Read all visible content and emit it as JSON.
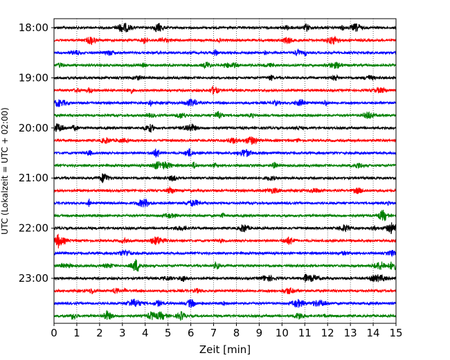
{
  "chart_data": {
    "type": "line",
    "title": "",
    "xlabel": "Zeit  [min]",
    "ylabel": "UTC (Lokalzeit = UTC + 02:00)",
    "xlim": [
      0,
      15
    ],
    "x_ticks": [
      0,
      1,
      2,
      3,
      4,
      5,
      6,
      7,
      8,
      9,
      10,
      11,
      12,
      13,
      14,
      15
    ],
    "grid": "vertical dotted lines at each minute",
    "y_ticks": [
      {
        "label": "18:00",
        "row": 0
      },
      {
        "label": "19:00",
        "row": 4
      },
      {
        "label": "20:00",
        "row": 8
      },
      {
        "label": "21:00",
        "row": 12
      },
      {
        "label": "22:00",
        "row": 16
      },
      {
        "label": "23:00",
        "row": 20
      }
    ],
    "trace_colors": [
      "#000000",
      "#ff0000",
      "#0000ff",
      "#008000"
    ],
    "series": [
      {
        "start_utc": "18:00"
      },
      {
        "start_utc": "18:15"
      },
      {
        "start_utc": "18:30"
      },
      {
        "start_utc": "18:45"
      },
      {
        "start_utc": "19:00"
      },
      {
        "start_utc": "19:15"
      },
      {
        "start_utc": "19:30"
      },
      {
        "start_utc": "19:45"
      },
      {
        "start_utc": "20:00"
      },
      {
        "start_utc": "20:15"
      },
      {
        "start_utc": "20:30"
      },
      {
        "start_utc": "20:45"
      },
      {
        "start_utc": "21:00"
      },
      {
        "start_utc": "21:15"
      },
      {
        "start_utc": "21:30"
      },
      {
        "start_utc": "21:45"
      },
      {
        "start_utc": "22:00"
      },
      {
        "start_utc": "22:15"
      },
      {
        "start_utc": "22:30"
      },
      {
        "start_utc": "22:45"
      },
      {
        "start_utc": "23:00"
      },
      {
        "start_utc": "23:15"
      },
      {
        "start_utc": "23:30"
      },
      {
        "start_utc": "23:45"
      }
    ]
  }
}
